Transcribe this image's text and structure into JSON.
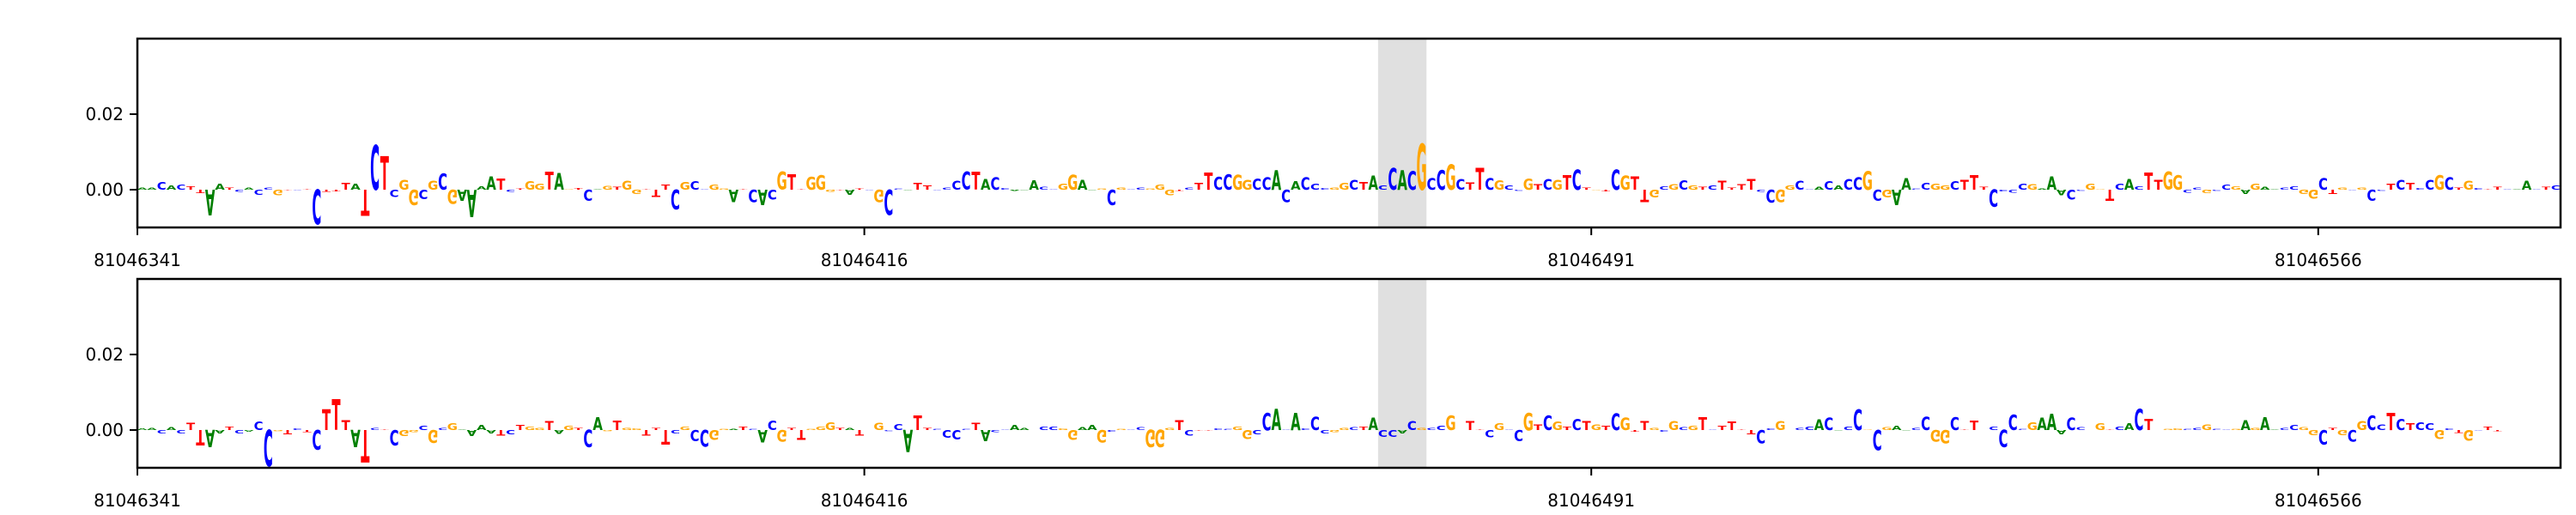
{
  "chart_data": [
    {
      "type": "sequence-logo",
      "x_start": 81046341,
      "x_end": 81046591,
      "xticks": [
        "81046341",
        "81046416",
        "81046491",
        "81046566"
      ],
      "yticks": [
        "0.02",
        "0.00"
      ],
      "ylim": [
        -0.01,
        0.04
      ],
      "highlight": [
        81046469,
        81046474
      ],
      "colors": {
        "A": "#008000",
        "C": "#0000ff",
        "G": "#ffa500",
        "T": "#ff0000"
      },
      "sequence": "AACACTTAATCACCGTCTCTTTATCTCGGCGCGAAAATCTGGTAGTCAGTGGTTTCGCCGGATCACGTTGGGTATCGCCATTCCCCTACCAAACCGGAAGCGCCGGGTCTTCCGGCCACACCCGGCTACCACGCCGCTTCGCCGTCGTCTGTCGTTGCGCGTCTTTTCCGGCCACACCGCGAACCGGCTTTCCCCGAAACCGGTCACTTGGCCGCCGAGAACCGGCTGCGCCTCTCCGCTGCTTCAACTCCCCG",
      "values": [
        0.0006,
        0.0005,
        0.002,
        0.0011,
        0.0013,
        0.0009,
        -0.0009,
        -0.0068,
        0.0016,
        0.0005,
        -0.0005,
        0.0005,
        -0.0013,
        0.0006,
        -0.0014,
        -0.0002,
        -0.0002,
        0.0002,
        -0.0092,
        -0.0005,
        -0.0004,
        0.0017,
        0.0016,
        -0.0069,
        0.0119,
        0.0088,
        -0.0019,
        0.0027,
        -0.0042,
        -0.0025,
        0.0024,
        0.0043,
        -0.0037,
        -0.003,
        -0.0072,
        0.0008,
        0.0035,
        0.003,
        -0.0005,
        0.0003,
        0.0022,
        0.0016,
        0.0047,
        0.0044,
        0.0001,
        0.0004,
        -0.003,
        0.0002,
        0.001,
        0.0007,
        0.0024,
        -0.0012,
        0.0001,
        -0.0019,
        0.0013,
        -0.0052,
        0.0021,
        0.0022,
        0.0002,
        0.0013,
        0.0003,
        -0.0033,
        0.0002,
        -0.0032,
        -0.0041,
        -0.0027,
        0.0047,
        0.0042,
        0.0002,
        0.0034,
        0.0038,
        -0.0006,
        -0.0001,
        -0.0013,
        0.0003,
        -0.0001,
        -0.0032,
        -0.0067,
        0.0003,
        -0.0001,
        0.0018,
        0.0012,
        -0.0002,
        0.0005,
        0.0024,
        0.0047,
        0.0047,
        0.0028,
        0.0032,
        0.0004,
        -0.0003,
        -0.0001,
        0.0025,
        0.0007,
        0.0001,
        0.0016,
        0.004,
        0.0026,
        -0.0002,
        0.0003,
        -0.0042,
        0.0006,
        0.0001,
        0.0005,
        0.0003,
        0.0013,
        -0.0014,
        -0.0003,
        0.0005,
        0.0017,
        0.0045,
        0.0034,
        0.0041,
        0.004,
        0.0027,
        0.0029,
        0.0032,
        0.0052,
        -0.0033,
        0.0022,
        0.0033,
        0.0016,
        0.0004,
        0.0005,
        0.0018,
        0.0026,
        0.0021,
        0.0037,
        0.0012,
        0.0058,
        0.0052,
        0.0048,
        0.0121,
        0.0031,
        0.0051,
        0.0066,
        0.0028,
        0.0019,
        0.0058,
        0.0031,
        0.0025,
        0.0012,
        -0.0003,
        0.003,
        0.0014,
        0.0028,
        0.0027,
        0.0038,
        0.0053,
        0.0006,
        -0.0001,
        -0.0004,
        0.0053,
        0.0037,
        0.0036,
        -0.0033,
        -0.002,
        0.0009,
        0.0014,
        0.0025,
        0.0011,
        0.0007,
        0.0012,
        0.0024,
        0.0005,
        0.0014,
        0.0028,
        -0.0006,
        -0.0034,
        -0.0032,
        0.0012,
        0.0023,
        0.0002,
        0.0007,
        0.0022,
        0.0012,
        0.0028,
        0.0032,
        0.0049,
        -0.003,
        -0.0021,
        -0.0042,
        0.0031,
        0.0003,
        0.0017,
        0.0016,
        0.0012,
        0.0022,
        0.0026,
        0.0038,
        0.0007,
        -0.0045,
        -0.0004,
        -0.0007,
        0.0016,
        0.0015,
        0.0003,
        0.0036,
        -0.0014,
        -0.0026,
        -0.0003,
        0.0016,
        0.0002,
        -0.003,
        0.0016,
        0.0028,
        0.0008,
        0.0046,
        0.0026,
        0.0047,
        0.0039,
        -0.0007,
        0.0005,
        -0.0009,
        -0.0003,
        0.0013,
        0.0009,
        -0.0011,
        0.0016,
        0.0007,
        0.0001,
        0.0006,
        0.0009,
        -0.0011,
        -0.0023,
        0.0031,
        -0.0012,
        0.0005,
        -0.0002,
        0.0005,
        -0.003,
        -0.0003,
        0.0016,
        0.0027,
        0.0018,
        0.0004,
        0.0027,
        0.0039,
        0.0033,
        0.0006,
        0.0023,
        0.0004,
        0.0002,
        0.0007,
        0.0002,
        0.0002,
        0.0023,
        0.0002,
        0.0007,
        0.0011
      ]
    },
    {
      "type": "sequence-logo",
      "x_start": 81046341,
      "x_end": 81046591,
      "xticks": [
        "81046341",
        "81046416",
        "81046491",
        "81046566"
      ],
      "yticks": [
        "0.02",
        "0.00"
      ],
      "ylim": [
        -0.01,
        0.04
      ],
      "highlight": [
        81046469,
        81046474
      ],
      "colors": {
        "A": "#008000",
        "C": "#0000ff",
        "G": "#ffa500",
        "T": "#ff0000"
      },
      "sequence": "AACACTTAATCACCGTCTCTTTATCTCGGCGCGAAAATCTGGTAGTCAGTGGTTTCGCCGGATCACGTTGGGTATCGCCATTCCCCTACCAAACCGGAAGCGCCGGGTCTTCCGGCCACACCCGGCTACCACGCCGCTTCGCCGTCGTCTGTCGTTGCGCGTCTTTTCCGGCCACACCGCGAACCGGCTTTCCCCGAAACCGGTCACTTGGCCGCCGAGAACCGGCTGCGCCTCTCCGCTGCTTCAACTCCCCG",
      "values": [
        0.0004,
        0.0005,
        -0.0009,
        0.0007,
        -0.0008,
        0.0019,
        -0.0041,
        -0.0046,
        -0.0009,
        0.0009,
        -0.0008,
        -0.0004,
        0.0022,
        -0.0096,
        -0.0003,
        -0.0012,
        0.0004,
        -0.0005,
        -0.0052,
        0.0054,
        0.0082,
        0.0026,
        -0.0045,
        -0.0086,
        0.0005,
        0.0001,
        -0.0042,
        -0.0016,
        -0.0006,
        0.0012,
        -0.0034,
        0.0005,
        0.0017,
        0.0002,
        -0.0016,
        0.0013,
        -0.0009,
        -0.0014,
        -0.0011,
        0.0013,
        0.0009,
        0.0006,
        0.0024,
        -0.001,
        0.0011,
        0.0006,
        -0.0045,
        0.0034,
        -0.0003,
        0.0025,
        0.0005,
        0.0004,
        -0.0014,
        0.0006,
        -0.0039,
        -0.0009,
        0.0009,
        -0.0029,
        -0.0044,
        -0.0026,
        0.0003,
        0.0003,
        0.0009,
        0.0003,
        -0.0033,
        0.0025,
        -0.0031,
        0.0005,
        -0.0026,
        0.0003,
        0.0009,
        0.0021,
        0.0005,
        0.0005,
        -0.0015,
        0.0,
        0.0019,
        -0.0003,
        0.0016,
        -0.0059,
        0.0039,
        0.0006,
        0.0003,
        -0.002,
        -0.0025,
        0.0003,
        0.0019,
        -0.0029,
        -0.0005,
        0.0001,
        0.0013,
        0.0006,
        0.0,
        0.0008,
        0.0009,
        0.0004,
        -0.0027,
        0.0007,
        0.0013,
        -0.0033,
        -0.0004,
        0.0003,
        0.0002,
        0.0007,
        -0.0045,
        -0.0045,
        0.0005,
        0.0026,
        -0.0014,
        -0.0001,
        -0.0002,
        0.0004,
        0.0003,
        0.0009,
        -0.0023,
        -0.0012,
        0.0046,
        0.0056,
        0.0002,
        0.0045,
        0.0004,
        0.0036,
        -0.0008,
        -0.0006,
        0.0005,
        0.0007,
        0.0008,
        0.0032,
        -0.0017,
        -0.0018,
        -0.0009,
        0.0024,
        0.0006,
        0.0006,
        0.0011,
        0.0039,
        0.0,
        0.0024,
        0.0002,
        -0.0019,
        0.0017,
        0.0001,
        -0.003,
        0.0045,
        0.0014,
        0.0039,
        0.0022,
        0.0009,
        0.0029,
        0.0023,
        0.0015,
        0.0012,
        0.0044,
        0.0032,
        -0.0004,
        0.0024,
        0.0006,
        -0.0004,
        0.0023,
        0.0007,
        0.0011,
        0.0034,
        0.0002,
        0.0011,
        0.0022,
        0.0001,
        -0.0011,
        -0.0036,
        0.0004,
        0.0024,
        0.0,
        0.0005,
        0.0009,
        0.0028,
        0.0032,
        -0.0002,
        0.0009,
        0.0054,
        0.0001,
        -0.0053,
        0.0007,
        0.0011,
        -0.0001,
        0.0006,
        0.0036,
        -0.0031,
        -0.0036,
        0.0034,
        0.0001,
        0.0025,
        0.0,
        0.0008,
        -0.0046,
        0.0041,
        0.0003,
        0.002,
        0.0032,
        0.0043,
        -0.0012,
        0.0032,
        0.0007,
        -0.0,
        0.0018,
        0.0001,
        0.0009,
        0.0018,
        0.0056,
        0.003,
        0.0,
        0.0003,
        0.0004,
        0.0003,
        0.0005,
        0.0014,
        0.0003,
        0.0002,
        0.0003,
        0.0026,
        0.0006,
        0.0034,
        0.0001,
        0.0006,
        0.0013,
        0.0007,
        -0.0013,
        -0.0039,
        0.0005,
        -0.0013,
        -0.0031,
        0.0023,
        0.0039,
        0.0015,
        0.0045,
        0.003,
        0.0017,
        0.002,
        0.0017,
        -0.0024,
        0.0004,
        -0.0007,
        -0.0028,
        -0.0001,
        0.0009,
        -0.0003
      ]
    }
  ]
}
